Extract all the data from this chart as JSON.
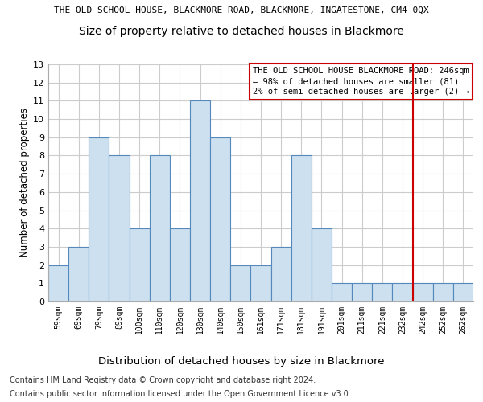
{
  "title1": "THE OLD SCHOOL HOUSE, BLACKMORE ROAD, BLACKMORE, INGATESTONE, CM4 0QX",
  "title2": "Size of property relative to detached houses in Blackmore",
  "xlabel": "Distribution of detached houses by size in Blackmore",
  "ylabel": "Number of detached properties",
  "categories": [
    "59sqm",
    "69sqm",
    "79sqm",
    "89sqm",
    "100sqm",
    "110sqm",
    "120sqm",
    "130sqm",
    "140sqm",
    "150sqm",
    "161sqm",
    "171sqm",
    "181sqm",
    "191sqm",
    "201sqm",
    "211sqm",
    "221sqm",
    "232sqm",
    "242sqm",
    "252sqm",
    "262sqm"
  ],
  "values": [
    2,
    3,
    9,
    8,
    4,
    8,
    4,
    11,
    9,
    2,
    2,
    3,
    8,
    4,
    1,
    1,
    1,
    1,
    1,
    1,
    1
  ],
  "bar_color": "#cce0f0",
  "bar_edge_color": "#5588bb",
  "ylim": [
    0,
    13
  ],
  "yticks": [
    0,
    1,
    2,
    3,
    4,
    5,
    6,
    7,
    8,
    9,
    10,
    11,
    12,
    13
  ],
  "grid_color": "#cccccc",
  "annotation_text": "THE OLD SCHOOL HOUSE BLACKMORE ROAD: 246sqm\n← 98% of detached houses are smaller (81)\n2% of semi-detached houses are larger (2) →",
  "annotation_box_color": "#ffffff",
  "annotation_box_edge": "#cc0000",
  "red_line_x": 17.5,
  "footer1": "Contains HM Land Registry data © Crown copyright and database right 2024.",
  "footer2": "Contains public sector information licensed under the Open Government Licence v3.0.",
  "title1_fontsize": 8.0,
  "title2_fontsize": 10,
  "annot_fontsize": 7.5,
  "footer_fontsize": 7.0,
  "ylabel_fontsize": 8.5,
  "xlabel_fontsize": 9.5,
  "xtick_fontsize": 7.0,
  "ytick_fontsize": 8.0
}
